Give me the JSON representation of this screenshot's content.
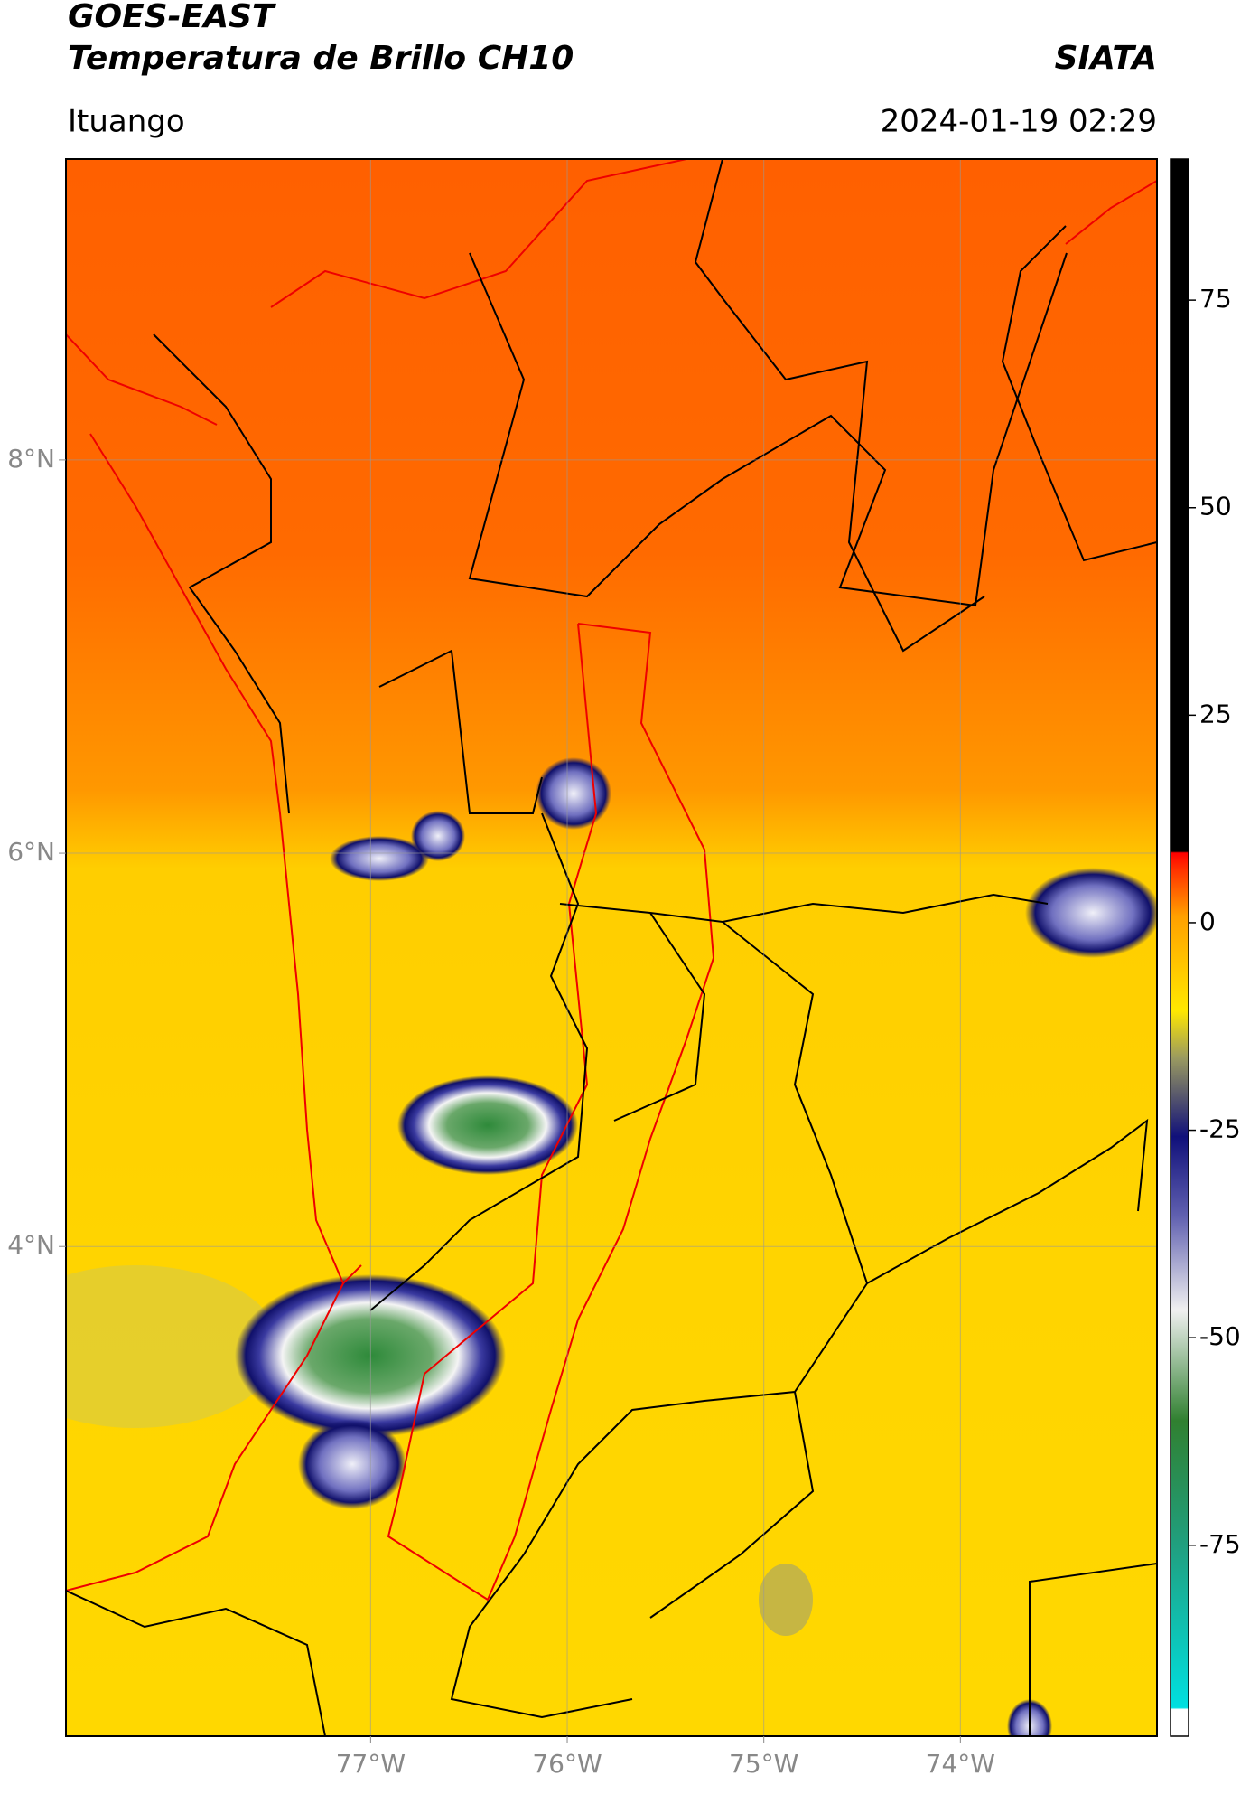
{
  "header": {
    "title": "GOES-EAST",
    "subtitle": "Temperatura de Brillo CH10",
    "brand": "SIATA",
    "location": "Ituango",
    "datetime": "2024-01-19 02:29"
  },
  "map": {
    "xlim": [
      -78.55,
      -73.0
    ],
    "ylim": [
      1.51,
      9.53
    ],
    "xticks": [
      {
        "value": -77,
        "label": "77°W"
      },
      {
        "value": -76,
        "label": "76°W"
      },
      {
        "value": -75,
        "label": "75°W"
      },
      {
        "value": -74,
        "label": "74°W"
      }
    ],
    "yticks": [
      {
        "value": 8,
        "label": "8°N"
      },
      {
        "value": 6,
        "label": "6°N"
      },
      {
        "value": 4,
        "label": "4°N"
      }
    ],
    "grid": true
  },
  "colorbar": {
    "lim": [
      -98,
      92
    ],
    "ticks": [
      75,
      50,
      25,
      0,
      -25,
      -50,
      -75
    ]
  }
}
